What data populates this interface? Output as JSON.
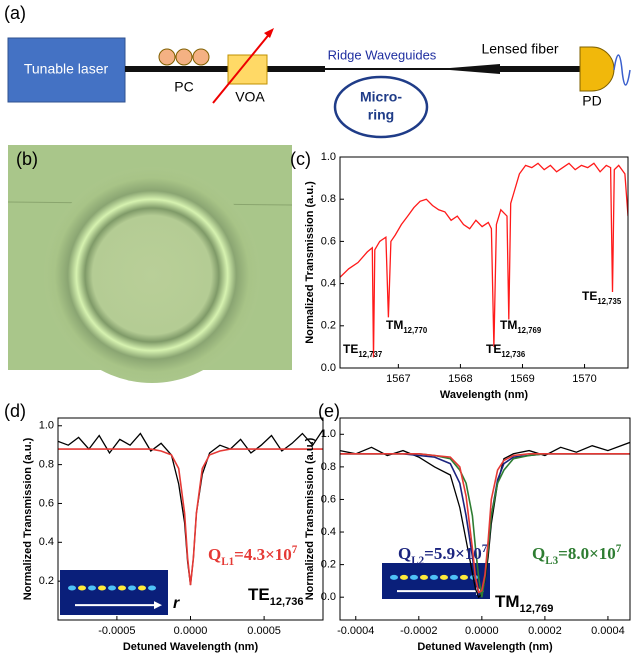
{
  "diagram": {
    "label": "(a)",
    "laser": "Tunable laser",
    "pc": "PC",
    "voa": "VOA",
    "waveguide": "Ridge Waveguides",
    "ring": [
      "Micro-",
      "ring"
    ],
    "fiber": "Lensed fiber",
    "pd": "PD"
  },
  "photo": {
    "label": "(b)"
  },
  "chart_data": [
    {
      "type": "line",
      "label": "(c)",
      "xlabel": "Wavelength (nm)",
      "ylabel": "Normalized Transmission (a.u.)",
      "xlim": [
        1566.06,
        1570.7
      ],
      "ylim": [
        0,
        1
      ],
      "xticks": [
        1567,
        1568,
        1569,
        1570
      ],
      "yticks": [
        {
          "value": 0,
          "label": "0.0"
        },
        {
          "value": 0.2,
          "label": "0.2"
        },
        {
          "value": 0.4,
          "label": "0.4"
        },
        {
          "value": 0.6,
          "label": "0.6"
        },
        {
          "value": 0.8,
          "label": "0.8"
        },
        {
          "value": 1,
          "label": "1.0"
        }
      ],
      "x": [
        1566.06,
        1566.2,
        1566.35,
        1566.5,
        1566.58,
        1566.6,
        1566.62,
        1566.7,
        1566.8,
        1566.84,
        1566.88,
        1566.95,
        1567.05,
        1567.15,
        1567.25,
        1567.35,
        1567.45,
        1567.55,
        1567.65,
        1567.75,
        1567.85,
        1567.95,
        1568.05,
        1568.15,
        1568.25,
        1568.35,
        1568.45,
        1568.5,
        1568.54,
        1568.58,
        1568.65,
        1568.75,
        1568.78,
        1568.81,
        1568.85,
        1568.95,
        1569.05,
        1569.15,
        1569.25,
        1569.35,
        1569.45,
        1569.55,
        1569.65,
        1569.75,
        1569.85,
        1569.95,
        1570.05,
        1570.15,
        1570.25,
        1570.35,
        1570.42,
        1570.45,
        1570.48,
        1570.55,
        1570.65,
        1570.7
      ],
      "series": [
        {
          "color": "#ff1a1a",
          "values": [
            0.43,
            0.47,
            0.5,
            0.55,
            0.57,
            0.05,
            0.56,
            0.6,
            0.62,
            0.24,
            0.6,
            0.63,
            0.68,
            0.72,
            0.76,
            0.79,
            0.8,
            0.77,
            0.75,
            0.74,
            0.7,
            0.72,
            0.68,
            0.66,
            0.7,
            0.67,
            0.69,
            0.66,
            0.1,
            0.68,
            0.75,
            0.72,
            0.23,
            0.78,
            0.82,
            0.92,
            0.96,
            0.95,
            0.97,
            0.94,
            0.96,
            0.93,
            0.95,
            0.97,
            0.94,
            0.96,
            0.95,
            0.97,
            0.93,
            0.96,
            0.95,
            0.36,
            0.94,
            0.96,
            0.92,
            0.72
          ]
        }
      ],
      "annotations": [
        {
          "text": "TM",
          "sub": "12,770",
          "color": "#000000"
        },
        {
          "text": "TE",
          "sub": "12,737",
          "color": "#000000"
        },
        {
          "text": "TE",
          "sub": "12,736",
          "color": "#000000"
        },
        {
          "text": "TM",
          "sub": "12,769",
          "color": "#000000"
        },
        {
          "text": "TE",
          "sub": "12,735",
          "color": "#000000"
        }
      ]
    },
    {
      "type": "line",
      "label": "(d)",
      "xlabel": "Detuned Wavelength (nm)",
      "ylabel": "Normalized Transmission (a.u.)",
      "xlim": [
        -0.0009,
        0.0009
      ],
      "ylim": [
        0,
        1.04
      ],
      "xticks": [
        {
          "value": -0.0005,
          "label": "-0.0005"
        },
        {
          "value": 0,
          "label": "0.0000"
        },
        {
          "value": 0.0005,
          "label": "0.0005"
        }
      ],
      "yticks": [
        {
          "value": 0.2,
          "label": "0.2"
        },
        {
          "value": 0.4,
          "label": "0.4"
        },
        {
          "value": 0.6,
          "label": "0.6"
        },
        {
          "value": 0.8,
          "label": "0.8"
        },
        {
          "value": 1,
          "label": "1.0"
        }
      ],
      "x": [
        -0.0009,
        -0.00083,
        -0.00076,
        -0.00069,
        -0.00062,
        -0.00055,
        -0.00048,
        -0.00041,
        -0.00034,
        -0.00027,
        -0.0002,
        -0.00013,
        -8e-05,
        -4e-05,
        -2e-05,
        0,
        2e-05,
        4e-05,
        8e-05,
        0.00013,
        0.0002,
        0.00027,
        0.00034,
        0.00041,
        0.00048,
        0.00055,
        0.00062,
        0.00069,
        0.00076,
        0.00083,
        0.0009
      ],
      "series": [
        {
          "color": "#000000",
          "values": [
            0.92,
            0.9,
            0.94,
            0.88,
            0.95,
            0.86,
            0.93,
            0.9,
            0.96,
            0.87,
            0.91,
            0.85,
            0.7,
            0.5,
            0.3,
            0.18,
            0.32,
            0.55,
            0.75,
            0.86,
            0.9,
            0.88,
            0.93,
            0.86,
            0.9,
            0.95,
            0.87,
            0.91,
            0.96,
            0.9,
            0.98
          ]
        },
        {
          "color": "#e53935",
          "values": [
            0.88,
            0.88,
            0.88,
            0.88,
            0.88,
            0.88,
            0.88,
            0.88,
            0.88,
            0.88,
            0.87,
            0.85,
            0.78,
            0.55,
            0.32,
            0.18,
            0.32,
            0.55,
            0.78,
            0.85,
            0.87,
            0.88,
            0.88,
            0.88,
            0.88,
            0.88,
            0.88,
            0.88,
            0.88,
            0.88,
            0.88
          ]
        }
      ],
      "inset_label": "r",
      "annotations": [
        {
          "text": "Q",
          "sub": "L1",
          "text2": "=4.3×10",
          "sup": "7",
          "color": "#e53935"
        },
        {
          "text": "TE",
          "sub": "12,736",
          "color": "#000000"
        }
      ]
    },
    {
      "type": "line",
      "label": "(e)",
      "xlabel": "Detuned Wavelength (nm)",
      "ylabel": "Normalized Transmission (a.u.)",
      "xlim": [
        -0.00045,
        0.00047
      ],
      "ylim": [
        -0.14,
        1.1
      ],
      "xticks": [
        {
          "value": -0.0004,
          "label": "-0.0004"
        },
        {
          "value": -0.0002,
          "label": "-0.0002"
        },
        {
          "value": 0,
          "label": "0.0000"
        },
        {
          "value": 0.0002,
          "label": "0.0002"
        },
        {
          "value": 0.0004,
          "label": "0.0004"
        }
      ],
      "yticks": [
        {
          "value": 0,
          "label": "0.0"
        },
        {
          "value": 0.2,
          "label": "0.2"
        },
        {
          "value": 0.4,
          "label": "0.4"
        },
        {
          "value": 0.6,
          "label": "0.6"
        },
        {
          "value": 0.8,
          "label": "0.8"
        },
        {
          "value": 1,
          "label": "1.0"
        }
      ],
      "x": [
        -0.00045,
        -0.0004,
        -0.00035,
        -0.0003,
        -0.00025,
        -0.0002,
        -0.00015,
        -0.0001,
        -7e-05,
        -5e-05,
        -3e-05,
        -2e-05,
        -1e-05,
        0,
        1e-05,
        2e-05,
        3e-05,
        5e-05,
        7e-05,
        0.0001,
        0.00015,
        0.0002,
        0.00025,
        0.0003,
        0.00035,
        0.0004,
        0.00047
      ],
      "series": [
        {
          "color": "#000000",
          "values": [
            0.9,
            0.88,
            0.92,
            0.87,
            0.9,
            0.86,
            0.8,
            0.75,
            0.55,
            0.35,
            0.15,
            0.05,
            0,
            0.02,
            0.1,
            0.25,
            0.45,
            0.7,
            0.85,
            0.88,
            0.9,
            0.87,
            0.92,
            0.89,
            0.93,
            0.9,
            0.95
          ]
        },
        {
          "color": "#1a237e",
          "values": [
            0.88,
            0.88,
            0.88,
            0.88,
            0.88,
            0.87,
            0.86,
            0.82,
            0.7,
            0.5,
            0.25,
            0.1,
            0.02,
            0.05,
            0.15,
            0.3,
            0.5,
            0.72,
            0.82,
            0.86,
            0.87,
            0.88,
            0.88,
            0.88,
            0.88,
            0.88,
            0.88
          ]
        },
        {
          "color": "#2e7d32",
          "values": [
            0.88,
            0.88,
            0.88,
            0.88,
            0.88,
            0.88,
            0.87,
            0.85,
            0.78,
            0.7,
            0.5,
            0.3,
            0.12,
            0,
            0.12,
            0.3,
            0.5,
            0.7,
            0.78,
            0.85,
            0.87,
            0.88,
            0.88,
            0.88,
            0.88,
            0.88,
            0.88
          ]
        },
        {
          "color": "#e53935",
          "values": [
            0.88,
            0.88,
            0.88,
            0.88,
            0.88,
            0.88,
            0.87,
            0.86,
            0.8,
            0.62,
            0.3,
            0.12,
            0.03,
            0.04,
            0.14,
            0.35,
            0.6,
            0.78,
            0.84,
            0.87,
            0.88,
            0.88,
            0.88,
            0.88,
            0.88,
            0.88,
            0.88
          ]
        }
      ],
      "annotations": [
        {
          "text": "Q",
          "sub": "L2",
          "text2": "=5.9×10",
          "sup": "7",
          "color": "#1a237e"
        },
        {
          "text": "Q",
          "sub": "L3",
          "text2": "=8.0×10",
          "sup": "7",
          "color": "#2e7d32"
        },
        {
          "text": "TM",
          "sub": "12,769",
          "color": "#000000"
        }
      ]
    }
  ]
}
